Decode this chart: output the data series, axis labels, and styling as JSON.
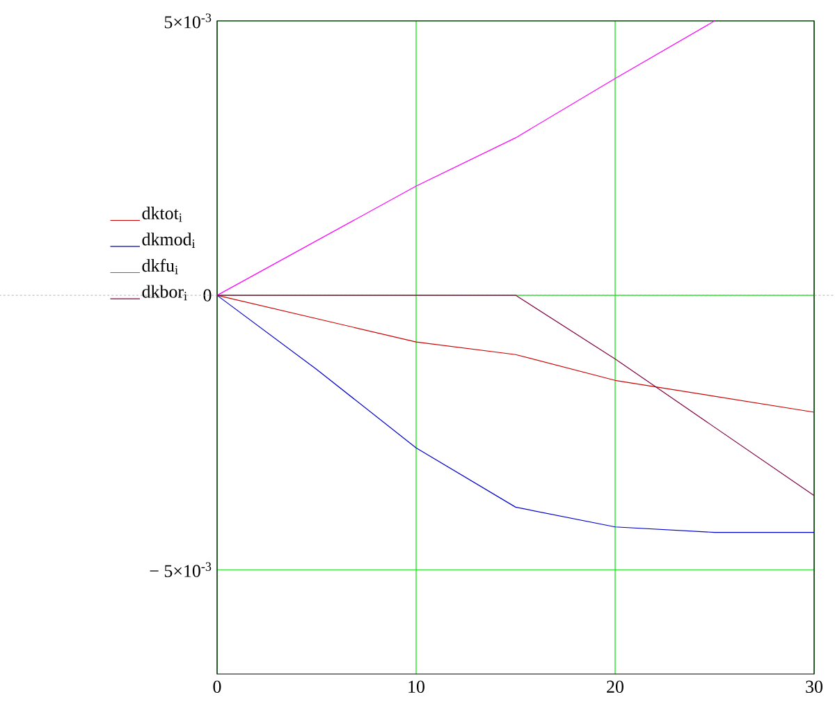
{
  "chart_data": {
    "type": "line",
    "series": [
      {
        "name": "dktot$_{i}$",
        "color": "#cc0000",
        "x": [
          0,
          10,
          15,
          20,
          30
        ],
        "values": [
          0,
          -0.00085,
          -0.00108,
          -0.00155,
          -0.00213
        ]
      },
      {
        "name": "dkmod$_{i}$",
        "color": "#0000cc",
        "x": [
          0,
          5,
          10,
          15,
          20,
          25,
          30
        ],
        "values": [
          0,
          -0.00135,
          -0.00278,
          -0.00386,
          -0.00422,
          -0.00432,
          -0.00432
        ]
      },
      {
        "name": "dkfu$_{i}$",
        "color": "#ff00ff",
        "x": [
          0,
          10,
          15,
          20,
          25
        ],
        "values": [
          0,
          0.00199,
          0.00287,
          0.00395,
          0.005
        ]
      },
      {
        "name": "dkbor$_{i}$",
        "color": "#800040",
        "x": [
          0,
          15,
          20,
          30
        ],
        "values": [
          0,
          0,
          -0.00116,
          -0.00365
        ]
      }
    ],
    "xlim": [
      0,
      30
    ],
    "ylim": [
      -0.0069,
      0.005
    ],
    "xticks": [
      0,
      10,
      20,
      30
    ],
    "yticks": [
      {
        "value": 0.005,
        "label": "5×10$^{-3}$"
      },
      0,
      {
        "value": -0.005,
        "label": "− 5×10$^{-3}$"
      }
    ],
    "ref_lines": [
      {
        "axis": "y",
        "value": 0,
        "color": "#a0a0a0",
        "line_style": "dashed"
      }
    ],
    "grid": true,
    "legend": "left",
    "marker": "none",
    "line_style": "solid"
  }
}
